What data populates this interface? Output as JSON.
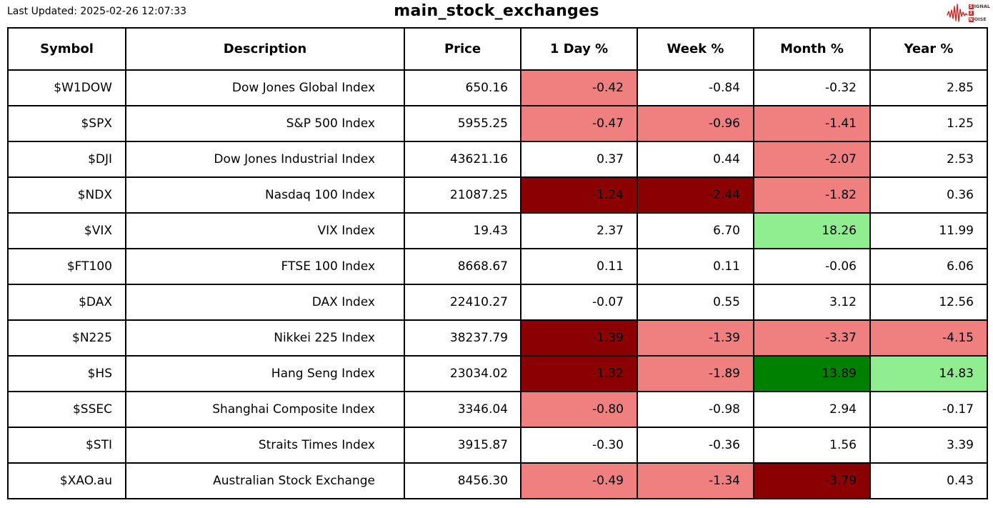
{
  "header": {
    "last_updated": "Last Updated: 2025-02-26 12:07:33",
    "title": "main_stock_exchanges",
    "logo": {
      "s": "S",
      "ignal": "IGNAL",
      "two": "2",
      "n": "N",
      "oise": "OISE",
      "accent_red": "#c62b28"
    }
  },
  "colors": {
    "white": "#ffffff",
    "light_red": "#f08080",
    "dark_red": "#8b0000",
    "light_green": "#90ee90",
    "dark_green": "#008000"
  },
  "table": {
    "columns": [
      "Symbol",
      "Description",
      "Price",
      "1 Day %",
      "Week %",
      "Month %",
      "Year %"
    ],
    "rows": [
      {
        "symbol": "$W1DOW",
        "description": "Dow Jones Global Index",
        "price": "650.16",
        "changes": [
          {
            "value": "-0.42",
            "bg": "light_red"
          },
          {
            "value": "-0.84",
            "bg": "white"
          },
          {
            "value": "-0.32",
            "bg": "white"
          },
          {
            "value": "2.85",
            "bg": "white"
          }
        ]
      },
      {
        "symbol": "$SPX",
        "description": "S&P 500 Index",
        "price": "5955.25",
        "changes": [
          {
            "value": "-0.47",
            "bg": "light_red"
          },
          {
            "value": "-0.96",
            "bg": "light_red"
          },
          {
            "value": "-1.41",
            "bg": "light_red"
          },
          {
            "value": "1.25",
            "bg": "white"
          }
        ]
      },
      {
        "symbol": "$DJI",
        "description": "Dow Jones Industrial Index",
        "price": "43621.16",
        "changes": [
          {
            "value": "0.37",
            "bg": "white"
          },
          {
            "value": "0.44",
            "bg": "white"
          },
          {
            "value": "-2.07",
            "bg": "light_red"
          },
          {
            "value": "2.53",
            "bg": "white"
          }
        ]
      },
      {
        "symbol": "$NDX",
        "description": "Nasdaq 100 Index",
        "price": "21087.25",
        "changes": [
          {
            "value": "-1.24",
            "bg": "dark_red"
          },
          {
            "value": "-2.44",
            "bg": "dark_red"
          },
          {
            "value": "-1.82",
            "bg": "light_red"
          },
          {
            "value": "0.36",
            "bg": "white"
          }
        ]
      },
      {
        "symbol": "$VIX",
        "description": "VIX Index",
        "price": "19.43",
        "changes": [
          {
            "value": "2.37",
            "bg": "white"
          },
          {
            "value": "6.70",
            "bg": "white"
          },
          {
            "value": "18.26",
            "bg": "light_green"
          },
          {
            "value": "11.99",
            "bg": "white"
          }
        ]
      },
      {
        "symbol": "$FT100",
        "description": "FTSE 100 Index",
        "price": "8668.67",
        "changes": [
          {
            "value": "0.11",
            "bg": "white"
          },
          {
            "value": "0.11",
            "bg": "white"
          },
          {
            "value": "-0.06",
            "bg": "white"
          },
          {
            "value": "6.06",
            "bg": "white"
          }
        ]
      },
      {
        "symbol": "$DAX",
        "description": "DAX Index",
        "price": "22410.27",
        "changes": [
          {
            "value": "-0.07",
            "bg": "white"
          },
          {
            "value": "0.55",
            "bg": "white"
          },
          {
            "value": "3.12",
            "bg": "white"
          },
          {
            "value": "12.56",
            "bg": "white"
          }
        ]
      },
      {
        "symbol": "$N225",
        "description": "Nikkei 225 Index",
        "price": "38237.79",
        "changes": [
          {
            "value": "-1.39",
            "bg": "dark_red"
          },
          {
            "value": "-1.39",
            "bg": "light_red"
          },
          {
            "value": "-3.37",
            "bg": "light_red"
          },
          {
            "value": "-4.15",
            "bg": "light_red"
          }
        ]
      },
      {
        "symbol": "$HS",
        "description": "Hang Seng Index",
        "price": "23034.02",
        "changes": [
          {
            "value": "-1.32",
            "bg": "dark_red"
          },
          {
            "value": "-1.89",
            "bg": "light_red"
          },
          {
            "value": "13.89",
            "bg": "dark_green"
          },
          {
            "value": "14.83",
            "bg": "light_green"
          }
        ]
      },
      {
        "symbol": "$SSEC",
        "description": "Shanghai Composite Index",
        "price": "3346.04",
        "changes": [
          {
            "value": "-0.80",
            "bg": "light_red"
          },
          {
            "value": "-0.98",
            "bg": "white"
          },
          {
            "value": "2.94",
            "bg": "white"
          },
          {
            "value": "-0.17",
            "bg": "white"
          }
        ]
      },
      {
        "symbol": "$STI",
        "description": "Straits Times Index",
        "price": "3915.87",
        "changes": [
          {
            "value": "-0.30",
            "bg": "white"
          },
          {
            "value": "-0.36",
            "bg": "white"
          },
          {
            "value": "1.56",
            "bg": "white"
          },
          {
            "value": "3.39",
            "bg": "white"
          }
        ]
      },
      {
        "symbol": "$XAO.au",
        "description": "Australian Stock Exchange",
        "price": "8456.30",
        "changes": [
          {
            "value": "-0.49",
            "bg": "light_red"
          },
          {
            "value": "-1.34",
            "bg": "light_red"
          },
          {
            "value": "-3.79",
            "bg": "dark_red"
          },
          {
            "value": "0.43",
            "bg": "white"
          }
        ]
      }
    ]
  },
  "chart_data": {
    "type": "table",
    "title": "main_stock_exchanges",
    "columns": [
      "Symbol",
      "Description",
      "Price",
      "1 Day %",
      "Week %",
      "Month %",
      "Year %"
    ],
    "rows": [
      [
        "$W1DOW",
        "Dow Jones Global Index",
        650.16,
        -0.42,
        -0.84,
        -0.32,
        2.85
      ],
      [
        "$SPX",
        "S&P 500 Index",
        5955.25,
        -0.47,
        -0.96,
        -1.41,
        1.25
      ],
      [
        "$DJI",
        "Dow Jones Industrial Index",
        43621.16,
        0.37,
        0.44,
        -2.07,
        2.53
      ],
      [
        "$NDX",
        "Nasdaq 100 Index",
        21087.25,
        -1.24,
        -2.44,
        -1.82,
        0.36
      ],
      [
        "$VIX",
        "VIX Index",
        19.43,
        2.37,
        6.7,
        18.26,
        11.99
      ],
      [
        "$FT100",
        "FTSE 100 Index",
        8668.67,
        0.11,
        0.11,
        -0.06,
        6.06
      ],
      [
        "$DAX",
        "DAX Index",
        22410.27,
        -0.07,
        0.55,
        3.12,
        12.56
      ],
      [
        "$N225",
        "Nikkei 225 Index",
        38237.79,
        -1.39,
        -1.39,
        -3.37,
        -4.15
      ],
      [
        "$HS",
        "Hang Seng Index",
        23034.02,
        -1.32,
        -1.89,
        13.89,
        14.83
      ],
      [
        "$SSEC",
        "Shanghai Composite Index",
        3346.04,
        -0.8,
        -0.98,
        2.94,
        -0.17
      ],
      [
        "$STI",
        "Straits Times Index",
        3915.87,
        -0.3,
        -0.36,
        1.56,
        3.39
      ],
      [
        "$XAO.au",
        "Australian Stock Exchange",
        8456.3,
        -0.49,
        -1.34,
        -3.79,
        0.43
      ]
    ]
  }
}
